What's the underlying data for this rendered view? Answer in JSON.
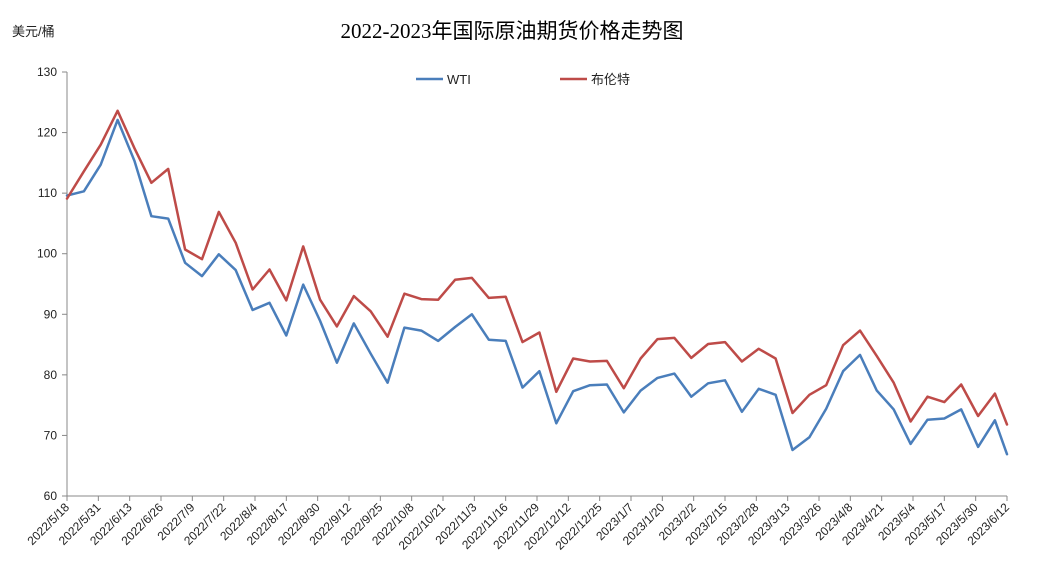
{
  "chart_data": {
    "type": "line",
    "title": "2022-2023年国际原油期货价格走势图",
    "ylabel": "美元/桶",
    "xlabel": "",
    "ylim": [
      60,
      130
    ],
    "yticks": [
      60,
      70,
      80,
      90,
      100,
      110,
      120,
      130
    ],
    "grid": false,
    "legend_position": "top-center",
    "x_tick_labels": [
      "2022/5/18",
      "2022/5/31",
      "2022/6/13",
      "2022/6/26",
      "2022/7/9",
      "2022/7/22",
      "2022/8/4",
      "2022/8/17",
      "2022/8/30",
      "2022/9/12",
      "2022/9/25",
      "2022/10/8",
      "2022/10/21",
      "2022/11/3",
      "2022/11/16",
      "2022/11/29",
      "2022/12/12",
      "2022/12/25",
      "2023/1/7",
      "2023/1/20",
      "2023/2/2",
      "2023/2/15",
      "2023/2/28",
      "2023/3/13",
      "2023/3/26",
      "2023/4/8",
      "2023/4/21",
      "2023/5/4",
      "2023/5/17",
      "2023/5/30",
      "2023/6/12"
    ],
    "x": [
      "2022/5/18",
      "2022/5/25",
      "2022/6/1",
      "2022/6/8",
      "2022/6/15",
      "2022/6/22",
      "2022/6/29",
      "2022/7/6",
      "2022/7/13",
      "2022/7/20",
      "2022/7/27",
      "2022/8/3",
      "2022/8/10",
      "2022/8/17",
      "2022/8/24",
      "2022/8/31",
      "2022/9/7",
      "2022/9/14",
      "2022/9/21",
      "2022/9/28",
      "2022/10/5",
      "2022/10/12",
      "2022/10/19",
      "2022/10/26",
      "2022/11/2",
      "2022/11/9",
      "2022/11/16",
      "2022/11/23",
      "2022/11/30",
      "2022/12/7",
      "2022/12/14",
      "2022/12/21",
      "2022/12/28",
      "2023/1/4",
      "2023/1/11",
      "2023/1/18",
      "2023/1/25",
      "2023/2/1",
      "2023/2/8",
      "2023/2/15",
      "2023/2/22",
      "2023/3/1",
      "2023/3/8",
      "2023/3/15",
      "2023/3/22",
      "2023/3/29",
      "2023/4/5",
      "2023/4/12",
      "2023/4/19",
      "2023/4/26",
      "2023/5/3",
      "2023/5/10",
      "2023/5/17",
      "2023/5/24",
      "2023/5/31",
      "2023/6/7",
      "2023/6/12"
    ],
    "series": [
      {
        "name": "WTI",
        "color": "#4a7ebb",
        "values": [
          109.6,
          110.3,
          114.7,
          122.1,
          115.3,
          106.2,
          105.8,
          98.5,
          96.3,
          99.9,
          97.3,
          90.7,
          91.9,
          86.5,
          94.9,
          88.9,
          82.0,
          88.5,
          83.5,
          78.7,
          87.8,
          87.3,
          85.6,
          87.9,
          90.0,
          85.8,
          85.6,
          77.9,
          80.6,
          72.0,
          77.3,
          78.3,
          78.4,
          73.8,
          77.4,
          79.5,
          80.2,
          76.4,
          78.6,
          79.1,
          73.9,
          77.7,
          76.7,
          67.6,
          69.7,
          74.4,
          80.6,
          83.3,
          77.4,
          74.3,
          68.6,
          72.6,
          72.8,
          74.3,
          68.1,
          72.5,
          66.9
        ]
      },
      {
        "name": "布伦特",
        "color": "#be4b48",
        "values": [
          109.1,
          113.6,
          118.0,
          123.6,
          117.4,
          111.7,
          114.0,
          100.7,
          99.1,
          106.9,
          101.8,
          94.1,
          97.4,
          92.3,
          101.2,
          92.4,
          88.0,
          93.0,
          90.5,
          86.3,
          93.4,
          92.5,
          92.4,
          95.7,
          96.0,
          92.7,
          92.9,
          85.4,
          87.0,
          77.2,
          82.7,
          82.2,
          82.3,
          77.8,
          82.7,
          85.9,
          86.1,
          82.8,
          85.1,
          85.4,
          82.2,
          84.3,
          82.7,
          73.7,
          76.7,
          78.3,
          84.9,
          87.3,
          83.1,
          78.7,
          72.3,
          76.4,
          75.5,
          78.4,
          73.2,
          76.9,
          71.8
        ]
      }
    ]
  }
}
